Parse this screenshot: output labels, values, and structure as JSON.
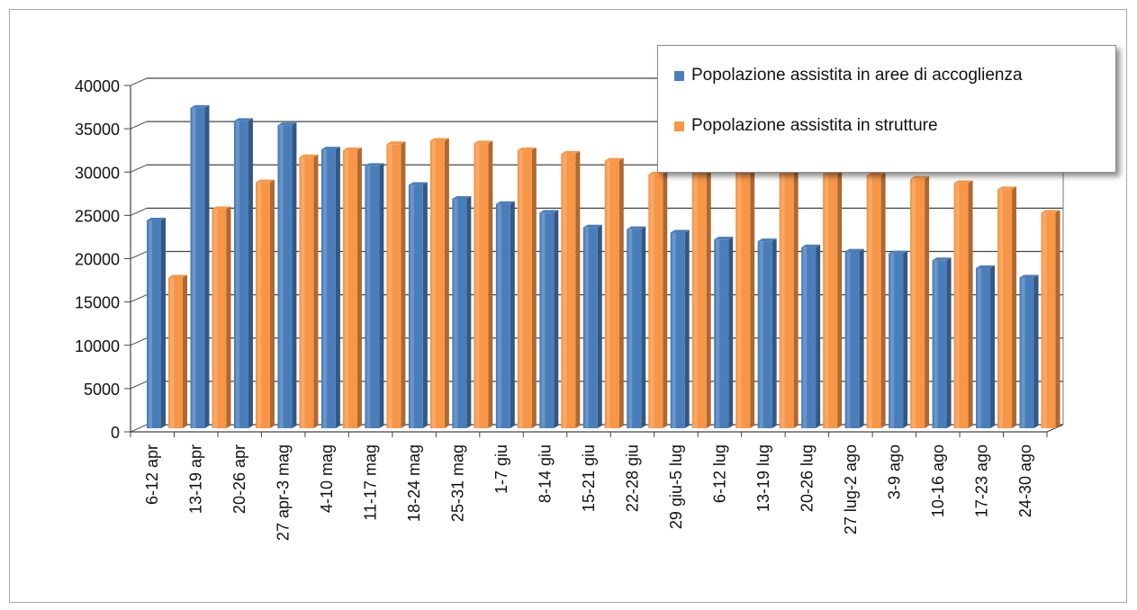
{
  "chart_data": {
    "type": "bar",
    "categories": [
      "6-12 apr",
      "13-19 apr",
      "20-26 apr",
      "27 apr-3 mag",
      "4-10 mag",
      "11-17 mag",
      "18-24 mag",
      "25-31 mag",
      "1-7 giu",
      "8-14 giu",
      "15-21 giu",
      "22-28 giu",
      "29 giu-5 lug",
      "6-12 lug",
      "13-19 lug",
      "20-26 lug",
      "27 lug-2 ago",
      "3-9 ago",
      "10-16 ago",
      "17-23 ago",
      "24-30 ago"
    ],
    "series": [
      {
        "name": "Popolazione assistita in aree di accoglienza",
        "color": "#4a7ebb",
        "values": [
          24000,
          37000,
          35500,
          35000,
          32200,
          30300,
          28100,
          26500,
          25900,
          24900,
          23200,
          23000,
          22600,
          21800,
          21600,
          20900,
          20400,
          20200,
          19400,
          18500,
          17400
        ]
      },
      {
        "name": "Popolazione assistita in strutture",
        "color": "#f79646",
        "values": [
          17400,
          25300,
          28400,
          31300,
          32100,
          32800,
          33200,
          32900,
          32100,
          31700,
          30900,
          29300,
          30300,
          30000,
          29700,
          29400,
          29200,
          28800,
          28300,
          27600,
          24900
        ]
      }
    ],
    "yticks": [
      "0",
      "5000",
      "10000",
      "15000",
      "20000",
      "25000",
      "30000",
      "35000",
      "40000"
    ],
    "ylim": [
      0,
      40000
    ],
    "grid": true,
    "legend_position": "top-right",
    "style": "3d-clustered-bar"
  }
}
